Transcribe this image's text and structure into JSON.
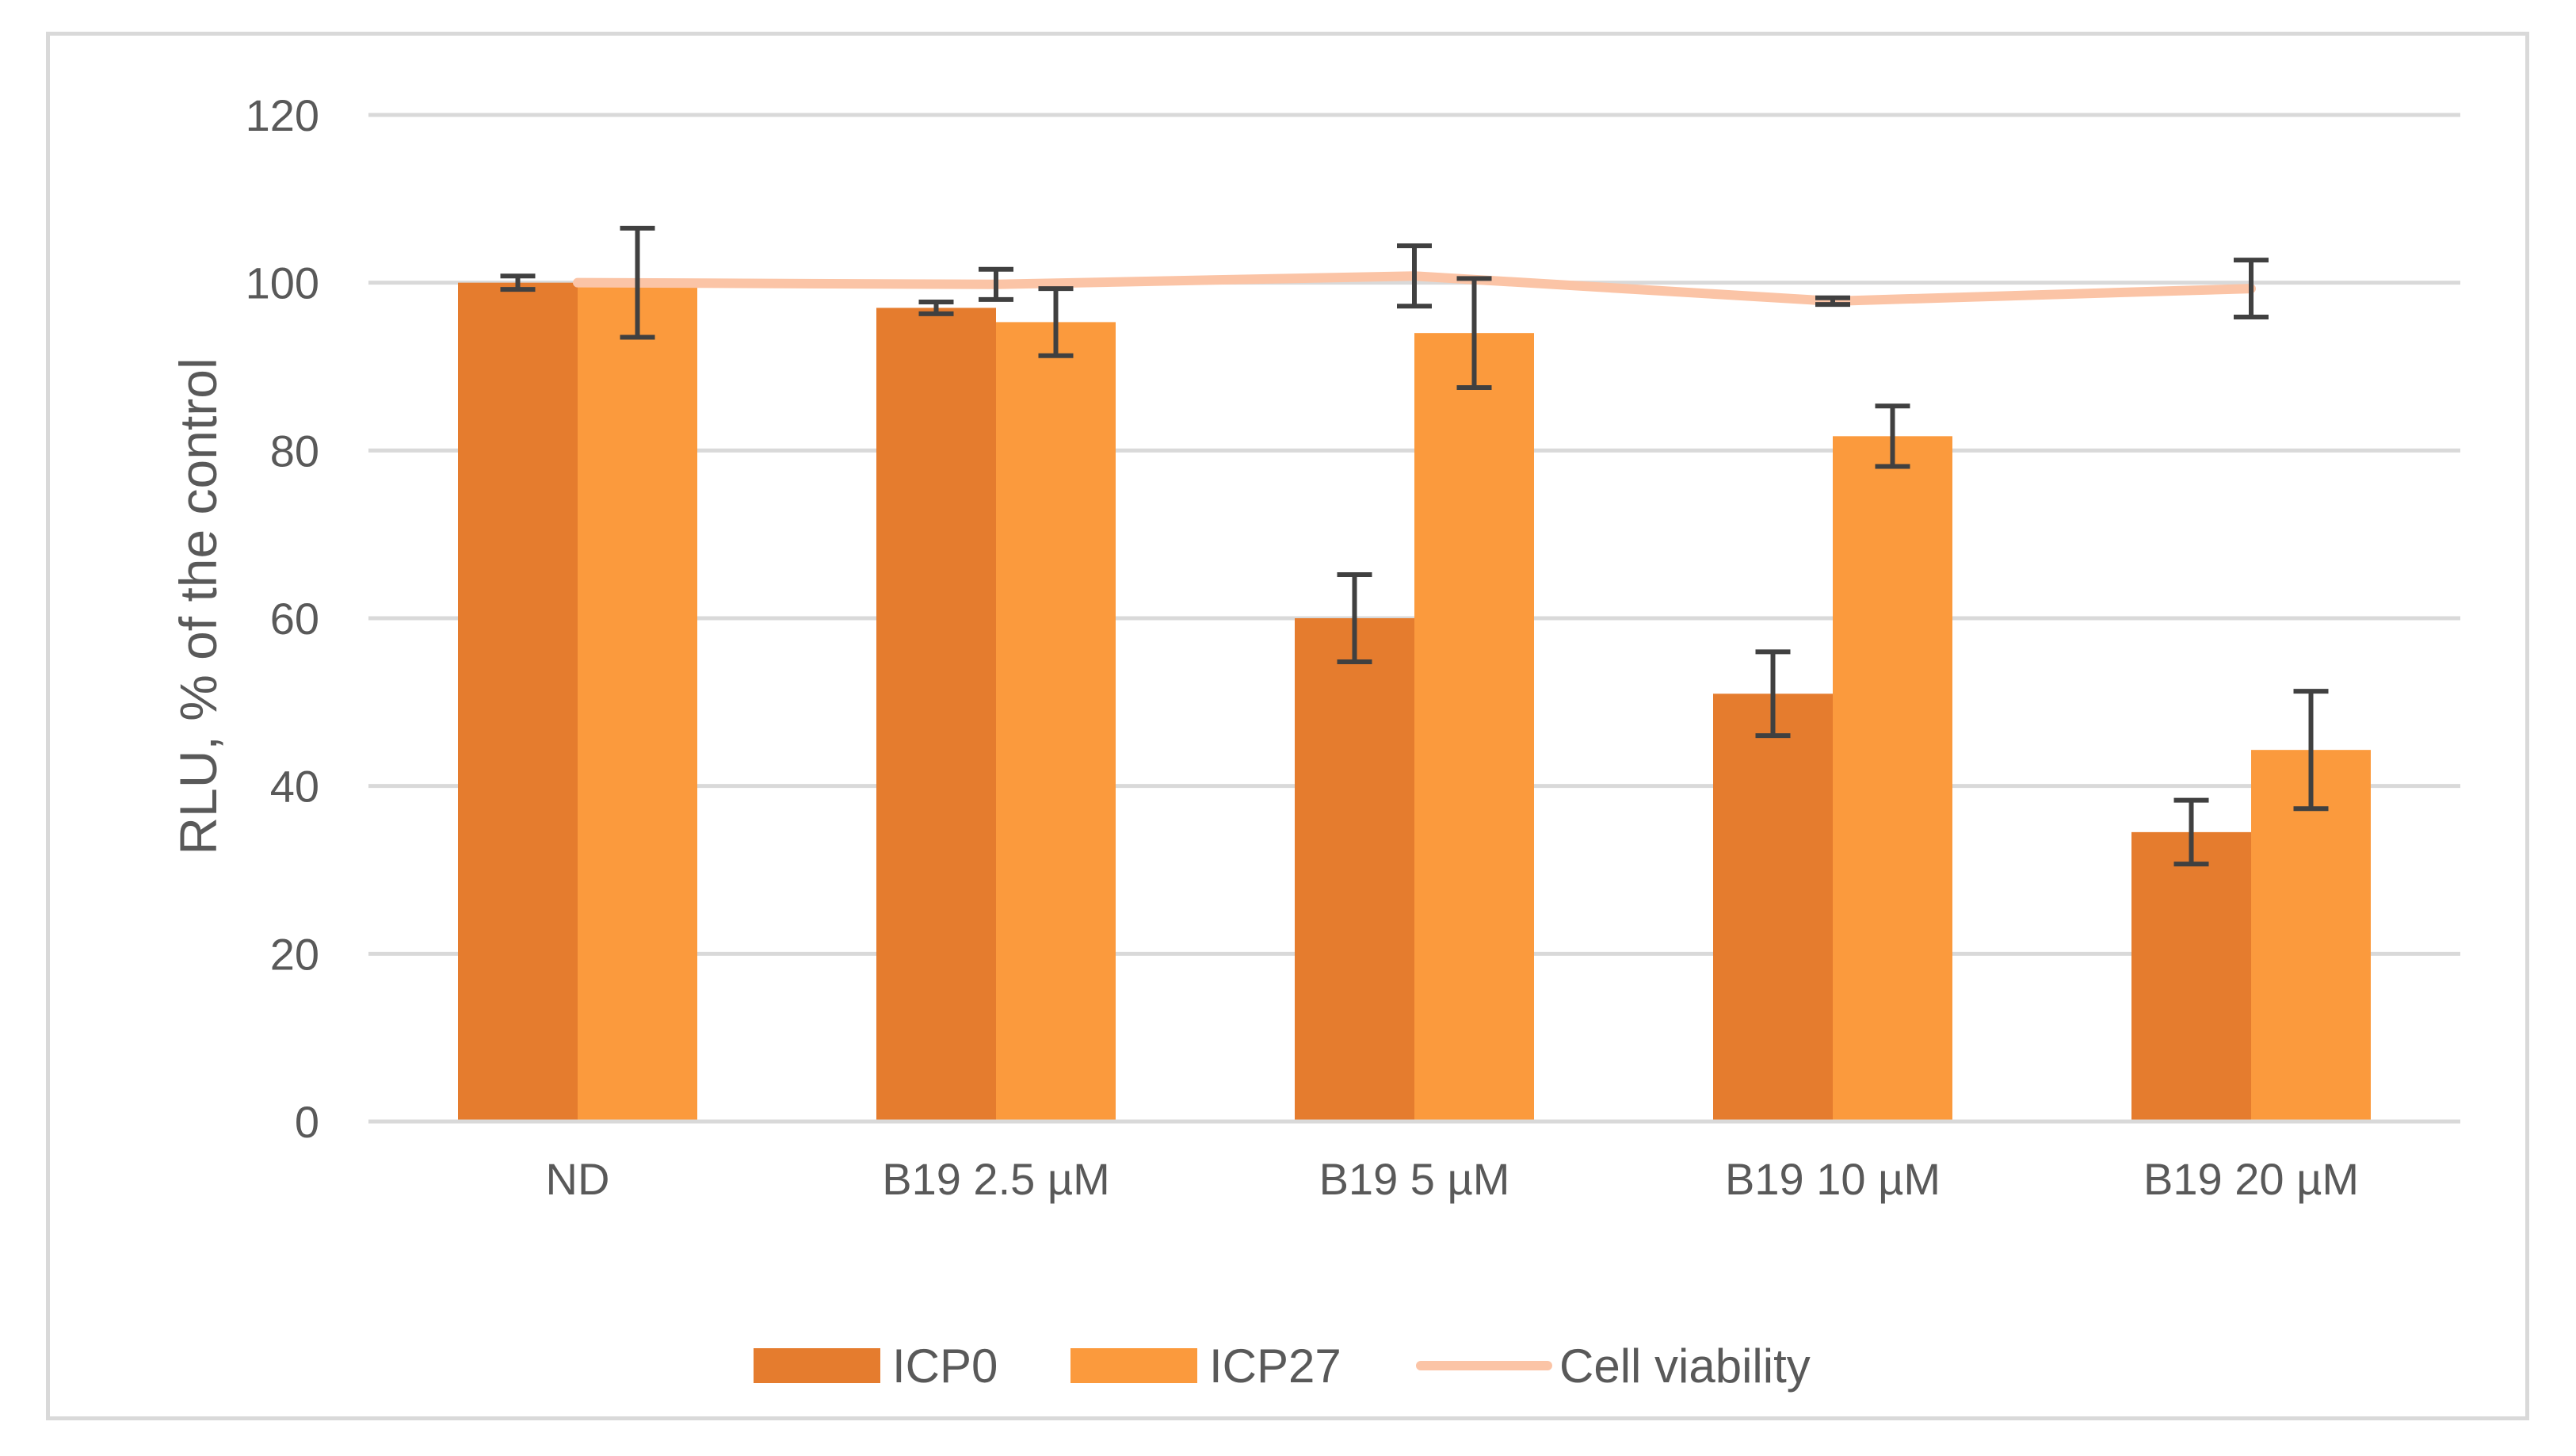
{
  "chart_data": {
    "type": "bar",
    "title": "",
    "xlabel": "",
    "ylabel": "RLU, % of the control",
    "ylim": [
      0,
      120
    ],
    "yticks": [
      0,
      20,
      40,
      60,
      80,
      100,
      120
    ],
    "ytick_labels": [
      "0",
      "20",
      "40",
      "60",
      "80",
      "100",
      "120"
    ],
    "grid": true,
    "legend_position": "bottom",
    "categories": [
      "ND",
      "B19 2.5 µM",
      "B19 5 µM",
      "B19 10 µM",
      "B19 20 µM"
    ],
    "series": [
      {
        "name": "ICP0",
        "type": "bar",
        "color": "#e57c2e",
        "values": [
          100,
          97,
          60,
          51,
          34.5
        ],
        "error": [
          0.8,
          0.7,
          5.2,
          5.0,
          3.8
        ]
      },
      {
        "name": "ICP27",
        "type": "bar",
        "color": "#fb9a3d",
        "values": [
          100,
          95.3,
          94,
          81.7,
          44.3
        ],
        "error": [
          6.5,
          4.0,
          6.5,
          3.6,
          7.0
        ]
      },
      {
        "name": "Cell viability",
        "type": "line",
        "color": "#fbc4a6",
        "values": [
          100,
          99.8,
          100.8,
          97.8,
          99.3
        ],
        "error": [
          0,
          1.8,
          3.6,
          0.4,
          3.4
        ]
      }
    ]
  }
}
